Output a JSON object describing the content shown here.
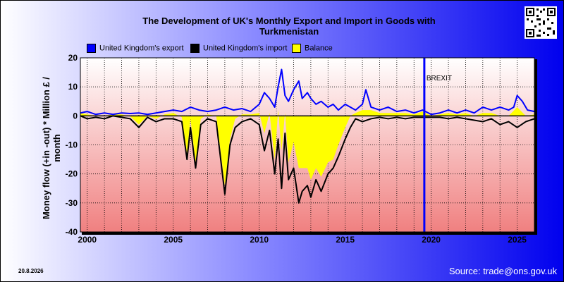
{
  "title_line1": "The Development of UK's Monthly Export and Import in Goods with",
  "title_line2": "Turkmenistan",
  "date_stamp": "20.8.2026",
  "source": "Source: trade@ons.gov.uk",
  "colors": {
    "export": "#0000ff",
    "import": "#000000",
    "balance": "#ffff00",
    "brexit": "#0000ff"
  },
  "chart_data": {
    "type": "line",
    "ylabel": "Money flow (+in -out) * Million £ / month",
    "ylim": [
      -40,
      20
    ],
    "yticks": [
      20,
      10,
      0,
      -10,
      -20,
      -30,
      -40
    ],
    "xlim": [
      1999.6,
      2026.0
    ],
    "xticks": [
      2000,
      2005,
      2010,
      2015,
      2020,
      2025
    ],
    "grid": true,
    "legend_position": "top-left",
    "annotation": {
      "label": "BREXIT",
      "x": 2019.6
    },
    "series": [
      {
        "name": "United Kingdom's export",
        "x": [
          1999.6,
          2000.0,
          2000.5,
          2001.0,
          2001.5,
          2002.0,
          2002.5,
          2003.0,
          2003.5,
          2004.0,
          2004.5,
          2005.0,
          2005.5,
          2006.0,
          2006.5,
          2007.0,
          2007.5,
          2008.0,
          2008.5,
          2009.0,
          2009.5,
          2010.0,
          2010.3,
          2010.6,
          2010.9,
          2011.1,
          2011.3,
          2011.5,
          2011.7,
          2012.0,
          2012.3,
          2012.5,
          2012.8,
          2013.0,
          2013.3,
          2013.6,
          2014.0,
          2014.3,
          2014.6,
          2015.0,
          2015.3,
          2015.6,
          2016.0,
          2016.2,
          2016.5,
          2017.0,
          2017.5,
          2018.0,
          2018.5,
          2019.0,
          2019.5,
          2020.0,
          2020.5,
          2021.0,
          2021.5,
          2022.0,
          2022.5,
          2023.0,
          2023.5,
          2024.0,
          2024.5,
          2024.8,
          2025.0,
          2025.3,
          2025.6,
          2026.0
        ],
        "values": [
          1,
          1.5,
          0.5,
          1,
          0.5,
          1,
          0.8,
          1,
          0.5,
          1,
          1.5,
          2,
          1.5,
          3,
          2,
          1.5,
          2,
          3,
          2,
          2.5,
          1.5,
          4,
          8,
          6,
          3,
          10,
          16,
          7,
          5,
          9,
          12,
          6,
          8,
          6,
          4,
          5,
          3,
          4,
          2,
          4,
          3,
          2,
          4,
          9,
          3,
          2,
          3,
          1.5,
          2,
          1,
          2,
          0.5,
          1,
          2,
          1,
          2,
          1,
          3,
          2,
          3,
          2,
          3,
          7,
          5,
          2,
          1.5
        ]
      },
      {
        "name": "United Kingdom's import",
        "x": [
          1999.6,
          2000.0,
          2000.5,
          2001.0,
          2001.5,
          2002.0,
          2002.5,
          2003.0,
          2003.5,
          2004.0,
          2004.5,
          2005.0,
          2005.5,
          2005.8,
          2006.0,
          2006.3,
          2006.6,
          2007.0,
          2007.5,
          2008.0,
          2008.3,
          2008.6,
          2009.0,
          2009.5,
          2010.0,
          2010.3,
          2010.6,
          2010.9,
          2011.1,
          2011.3,
          2011.5,
          2011.7,
          2012.0,
          2012.3,
          2012.5,
          2012.8,
          2013.0,
          2013.3,
          2013.6,
          2014.0,
          2014.3,
          2014.6,
          2015.0,
          2015.3,
          2015.6,
          2016.0,
          2016.5,
          2017.0,
          2017.5,
          2018.0,
          2018.5,
          2019.0,
          2019.5,
          2020.0,
          2020.5,
          2021.0,
          2021.5,
          2022.0,
          2022.5,
          2023.0,
          2023.5,
          2024.0,
          2024.5,
          2025.0,
          2025.5,
          2026.0
        ],
        "values": [
          0,
          -1,
          -0.5,
          -1,
          0,
          -0.5,
          -1,
          -4,
          -0.5,
          -2,
          -1,
          -1,
          -2,
          -15,
          -4,
          -18,
          -3,
          -1,
          -2,
          -27,
          -10,
          -4,
          -2,
          -1,
          -3,
          -12,
          -5,
          -20,
          -8,
          -25,
          -6,
          -22,
          -18,
          -30,
          -26,
          -24,
          -28,
          -22,
          -26,
          -20,
          -18,
          -14,
          -8,
          -4,
          -1,
          -2,
          -1,
          -0.5,
          -1,
          -0.5,
          -1,
          -0.5,
          -0.5,
          -0.5,
          -0.5,
          -1,
          -0.5,
          -1,
          -1.5,
          -2,
          -1,
          -3,
          -2,
          -4,
          -2,
          -1
        ]
      },
      {
        "name": "Balance",
        "x": [
          1999.6,
          2000.0,
          2000.5,
          2001.0,
          2001.5,
          2002.0,
          2002.5,
          2003.0,
          2003.5,
          2004.0,
          2004.5,
          2005.0,
          2005.5,
          2005.8,
          2006.0,
          2006.3,
          2006.6,
          2007.0,
          2007.5,
          2008.0,
          2008.3,
          2008.6,
          2009.0,
          2009.5,
          2010.0,
          2010.3,
          2010.6,
          2010.9,
          2011.1,
          2011.3,
          2011.5,
          2011.7,
          2012.0,
          2012.3,
          2012.5,
          2012.8,
          2013.0,
          2013.3,
          2013.6,
          2014.0,
          2014.3,
          2014.6,
          2015.0,
          2015.3,
          2015.6,
          2016.0,
          2016.5,
          2017.0,
          2017.5,
          2018.0,
          2018.5,
          2019.0,
          2019.5,
          2020.0,
          2020.5,
          2021.0,
          2021.5,
          2022.0,
          2022.5,
          2023.0,
          2023.5,
          2024.0,
          2024.5,
          2025.0,
          2025.5,
          2026.0
        ],
        "values": [
          1,
          0.5,
          0,
          0,
          0.5,
          0.5,
          -0.2,
          -3,
          0,
          -1,
          0.5,
          1,
          -0.5,
          -13,
          -1,
          -16,
          -1,
          0.5,
          0,
          -24,
          -8,
          -1,
          0.5,
          0.5,
          1,
          -6,
          1,
          -15,
          2,
          -12,
          1,
          -16,
          -9,
          -18,
          -18,
          -18,
          -22,
          -18,
          -21,
          -16,
          -15,
          -10,
          -4,
          0,
          1,
          2,
          2,
          1,
          1,
          1,
          1,
          0.5,
          1.5,
          0,
          0.5,
          1,
          0.5,
          1,
          0,
          1,
          1,
          0,
          0,
          3,
          0,
          0.5
        ]
      }
    ]
  }
}
